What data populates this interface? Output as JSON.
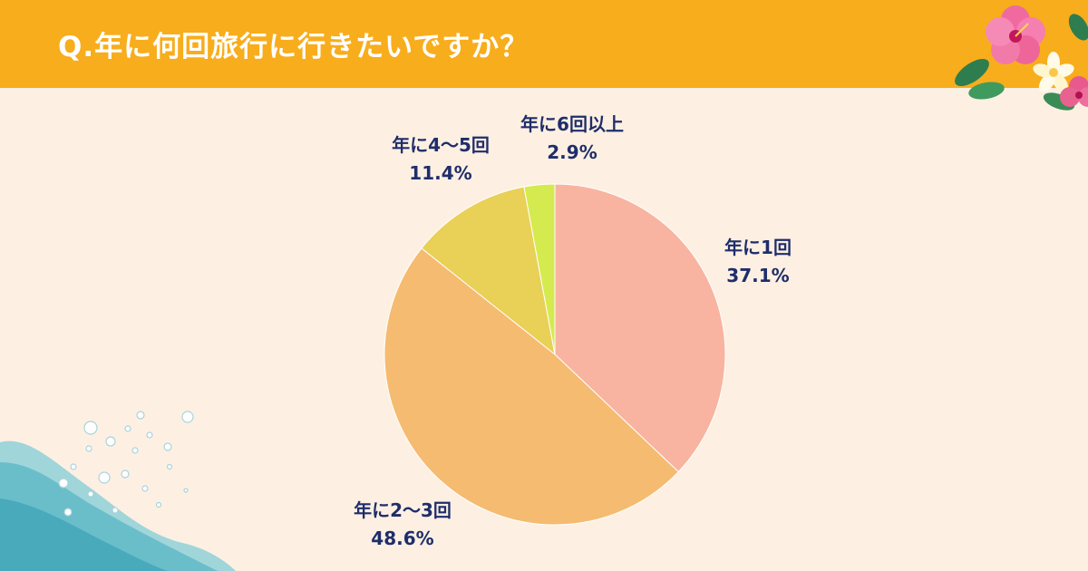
{
  "header": {
    "title": "Q.年に何回旅行に行きたいですか？"
  },
  "chart_data": {
    "type": "pie",
    "title": "Q.年に何回旅行に行きたいですか？",
    "start_angle_deg": 0,
    "direction": "clockwise",
    "slices": [
      {
        "label": "年に1回",
        "value": 37.1,
        "value_label": "37.1%",
        "color": "#f8b4a0"
      },
      {
        "label": "年に2～3回",
        "value": 48.6,
        "value_label": "48.6%",
        "color": "#f5bb70"
      },
      {
        "label": "年に4～5回",
        "value": 11.4,
        "value_label": "11.4%",
        "color": "#e9d056"
      },
      {
        "label": "年に6回以上",
        "value": 2.9,
        "value_label": "2.9%",
        "color": "#d5ea4f"
      }
    ]
  },
  "decorations": {
    "top_right": "hibiscus-flowers-icon",
    "bottom_left": "water-splash-icon"
  },
  "colors": {
    "header_bg": "#f8ad1c",
    "background": "#fdf0e2",
    "label_text": "#1f2d6b"
  }
}
